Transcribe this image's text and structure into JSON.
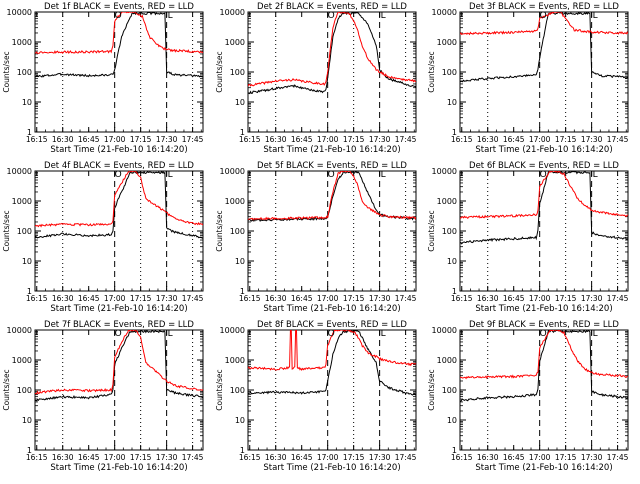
{
  "chart_data": [
    {
      "type": "line",
      "title": "Det 1f BLACK = Events, RED = LLD",
      "xlabel": "Start Time (21-Feb-10 16:14:20)",
      "ylabel": "Counts/sec",
      "yscale": "log",
      "ylim": [
        1,
        10000
      ],
      "x_ticks": [
        "16:15",
        "16:30",
        "16:45",
        "17:00",
        "17:15",
        "17:30",
        "17:45"
      ],
      "y_ticks": [
        "1",
        "10",
        "100",
        "1000",
        "10000"
      ],
      "markers": [
        "O",
        "L"
      ],
      "grid": false,
      "series": [
        {
          "name": "Events",
          "color": "#000000",
          "x": [
            "16:14",
            "16:30",
            "16:45",
            "16:58",
            "16:59",
            "17:00",
            "17:04",
            "17:10",
            "17:22",
            "17:26",
            "17:28",
            "17:29",
            "17:30",
            "17:35",
            "17:45",
            "17:51"
          ],
          "values": [
            70,
            85,
            75,
            80,
            90,
            120,
            1500,
            9000,
            9000,
            9000,
            9000,
            9000,
            100,
            80,
            75,
            70
          ]
        },
        {
          "name": "LLD",
          "color": "#ff0000",
          "x": [
            "16:14",
            "16:30",
            "16:45",
            "16:58",
            "16:59",
            "17:00",
            "17:04",
            "17:08",
            "17:12",
            "17:16",
            "17:20",
            "17:26",
            "17:30",
            "17:35",
            "17:45",
            "17:51"
          ],
          "values": [
            450,
            460,
            470,
            480,
            800,
            5000,
            10000,
            10000,
            10000,
            7000,
            1500,
            700,
            550,
            520,
            480,
            450
          ]
        }
      ]
    },
    {
      "type": "line",
      "title": "Det 2f BLACK = Events, RED = LLD",
      "xlabel": "Start Time (21-Feb-10 16:14:20)",
      "ylabel": "Counts/sec",
      "yscale": "log",
      "ylim": [
        1,
        10000
      ],
      "x_ticks": [
        "16:15",
        "16:30",
        "16:45",
        "17:00",
        "17:15",
        "17:30",
        "17:45"
      ],
      "y_ticks": [
        "1",
        "10",
        "100",
        "1000",
        "10000"
      ],
      "markers": [
        "O",
        "L"
      ],
      "grid": false,
      "series": [
        {
          "name": "Events",
          "color": "#000000",
          "x": [
            "16:14",
            "16:30",
            "16:40",
            "16:50",
            "16:58",
            "16:59",
            "17:00",
            "17:03",
            "17:06",
            "17:09",
            "17:10",
            "17:18",
            "17:23",
            "17:28",
            "17:30",
            "17:35",
            "17:45",
            "17:51"
          ],
          "values": [
            20,
            28,
            35,
            25,
            22,
            25,
            60,
            1500,
            6000,
            9000,
            9000,
            9000,
            4000,
            800,
            120,
            60,
            40,
            30
          ]
        },
        {
          "name": "LLD",
          "color": "#ff0000",
          "x": [
            "16:14",
            "16:30",
            "16:40",
            "16:50",
            "16:58",
            "16:59",
            "17:00",
            "17:03",
            "17:06",
            "17:09",
            "17:13",
            "17:17",
            "17:20",
            "17:23",
            "17:28",
            "17:30",
            "17:35",
            "17:45",
            "17:51"
          ],
          "values": [
            35,
            50,
            55,
            45,
            40,
            45,
            100,
            3000,
            10000,
            10000,
            8000,
            3000,
            700,
            300,
            120,
            100,
            70,
            55,
            50
          ]
        }
      ]
    },
    {
      "type": "line",
      "title": "Det 3f BLACK = Events, RED = LLD",
      "xlabel": "Start Time (21-Feb-10 16:14:20)",
      "ylabel": "Counts/sec",
      "yscale": "log",
      "ylim": [
        1,
        10000
      ],
      "x_ticks": [
        "16:15",
        "16:30",
        "16:45",
        "17:00",
        "17:15",
        "17:30",
        "17:45"
      ],
      "y_ticks": [
        "1",
        "10",
        "100",
        "1000",
        "10000"
      ],
      "markers": [
        "O",
        "L"
      ],
      "grid": false,
      "series": [
        {
          "name": "Events",
          "color": "#000000",
          "x": [
            "16:14",
            "16:30",
            "16:45",
            "16:58",
            "16:59",
            "17:00",
            "17:05",
            "17:24",
            "17:28",
            "17:29",
            "17:30",
            "17:35",
            "17:45",
            "17:51"
          ],
          "values": [
            50,
            60,
            70,
            80,
            120,
            300,
            9000,
            9000,
            9000,
            9000,
            100,
            75,
            70,
            65
          ]
        },
        {
          "name": "LLD",
          "color": "#ff0000",
          "x": [
            "16:14",
            "16:30",
            "16:45",
            "16:58",
            "16:59",
            "17:00",
            "17:08",
            "17:12",
            "17:16",
            "17:20",
            "17:28",
            "17:35",
            "17:45",
            "17:51"
          ],
          "values": [
            1900,
            2000,
            2100,
            2300,
            2800,
            6000,
            10000,
            10000,
            5000,
            2500,
            2200,
            2100,
            2000,
            2000
          ]
        }
      ]
    },
    {
      "type": "line",
      "title": "Det 4f BLACK = Events, RED = LLD",
      "xlabel": "Start Time (21-Feb-10 16:14:20)",
      "ylabel": "Counts/sec",
      "yscale": "log",
      "ylim": [
        1,
        10000
      ],
      "x_ticks": [
        "16:15",
        "16:30",
        "16:45",
        "17:00",
        "17:15",
        "17:30",
        "17:45"
      ],
      "y_ticks": [
        "1",
        "10",
        "100",
        "1000",
        "10000"
      ],
      "markers": [
        "O",
        "L"
      ],
      "grid": false,
      "series": [
        {
          "name": "Events",
          "color": "#000000",
          "x": [
            "16:14",
            "16:30",
            "16:45",
            "16:58",
            "16:59",
            "17:00",
            "17:04",
            "17:09",
            "17:25",
            "17:28",
            "17:29",
            "17:30",
            "17:35",
            "17:45",
            "17:51"
          ],
          "values": [
            60,
            80,
            70,
            75,
            100,
            600,
            2000,
            9000,
            9000,
            9000,
            9000,
            120,
            90,
            70,
            60
          ]
        },
        {
          "name": "LLD",
          "color": "#ff0000",
          "x": [
            "16:14",
            "16:30",
            "16:45",
            "16:58",
            "16:59",
            "17:00",
            "17:04",
            "17:08",
            "17:12",
            "17:15",
            "17:18",
            "17:24",
            "17:30",
            "17:35",
            "17:45",
            "17:51"
          ],
          "values": [
            150,
            165,
            160,
            170,
            220,
            1500,
            4000,
            10000,
            10000,
            6000,
            1200,
            700,
            400,
            250,
            180,
            170
          ]
        }
      ]
    },
    {
      "type": "line",
      "title": "Det 5f BLACK = Events, RED = LLD",
      "xlabel": "Start Time (21-Feb-10 16:14:20)",
      "ylabel": "Counts/sec",
      "yscale": "log",
      "ylim": [
        1,
        10000
      ],
      "x_ticks": [
        "16:15",
        "16:30",
        "16:45",
        "17:00",
        "17:15",
        "17:30",
        "17:45"
      ],
      "y_ticks": [
        "1",
        "10",
        "100",
        "1000",
        "10000"
      ],
      "markers": [
        "O",
        "L"
      ],
      "grid": false,
      "series": [
        {
          "name": "Events",
          "color": "#000000",
          "x": [
            "16:14",
            "16:30",
            "16:45",
            "16:58",
            "16:59",
            "17:00",
            "17:03",
            "17:06",
            "17:09",
            "17:18",
            "17:23",
            "17:28",
            "17:30",
            "17:35",
            "17:45",
            "17:51"
          ],
          "values": [
            230,
            240,
            250,
            260,
            270,
            280,
            1500,
            5000,
            9000,
            9000,
            2000,
            500,
            350,
            300,
            270,
            260
          ]
        },
        {
          "name": "LLD",
          "color": "#ff0000",
          "x": [
            "16:14",
            "16:30",
            "16:45",
            "16:58",
            "16:59",
            "17:00",
            "17:03",
            "17:06",
            "17:09",
            "17:13",
            "17:17",
            "17:20",
            "17:23",
            "17:28",
            "17:30",
            "17:35",
            "17:45",
            "17:51"
          ],
          "values": [
            250,
            260,
            270,
            280,
            290,
            300,
            2000,
            8000,
            10000,
            10000,
            4000,
            1000,
            600,
            400,
            350,
            300,
            280,
            270
          ]
        }
      ]
    },
    {
      "type": "line",
      "title": "Det 6f BLACK = Events, RED = LLD",
      "xlabel": "Start Time (21-Feb-10 16:14:20)",
      "ylabel": "Counts/sec",
      "yscale": "log",
      "ylim": [
        1,
        10000
      ],
      "x_ticks": [
        "16:15",
        "16:30",
        "16:45",
        "17:00",
        "17:15",
        "17:30",
        "17:45"
      ],
      "y_ticks": [
        "1",
        "10",
        "100",
        "1000",
        "10000"
      ],
      "markers": [
        "O",
        "L"
      ],
      "grid": false,
      "series": [
        {
          "name": "Events",
          "color": "#000000",
          "x": [
            "16:14",
            "16:30",
            "16:45",
            "16:58",
            "16:59",
            "17:00",
            "17:05",
            "17:26",
            "17:28",
            "17:29",
            "17:30",
            "17:35",
            "17:45",
            "17:51"
          ],
          "values": [
            40,
            50,
            55,
            60,
            100,
            800,
            9000,
            9000,
            9000,
            9000,
            90,
            70,
            60,
            55
          ]
        },
        {
          "name": "LLD",
          "color": "#ff0000",
          "x": [
            "16:14",
            "16:30",
            "16:45",
            "16:58",
            "16:59",
            "17:00",
            "17:06",
            "17:10",
            "17:14",
            "17:18",
            "17:22",
            "17:26",
            "17:30",
            "17:35",
            "17:45",
            "17:51"
          ],
          "values": [
            280,
            300,
            320,
            350,
            450,
            3000,
            10000,
            10000,
            8000,
            3000,
            1200,
            700,
            500,
            420,
            350,
            320
          ]
        }
      ]
    },
    {
      "type": "line",
      "title": "Det 7f BLACK = Events, RED = LLD",
      "xlabel": "Start Time (21-Feb-10 16:14:20)",
      "ylabel": "Counts/sec",
      "yscale": "log",
      "ylim": [
        1,
        10000
      ],
      "x_ticks": [
        "16:15",
        "16:30",
        "16:45",
        "17:00",
        "17:15",
        "17:30",
        "17:45"
      ],
      "y_ticks": [
        "1",
        "10",
        "100",
        "1000",
        "10000"
      ],
      "markers": [
        "O",
        "L"
      ],
      "grid": false,
      "series": [
        {
          "name": "Events",
          "color": "#000000",
          "x": [
            "16:14",
            "16:30",
            "16:45",
            "16:58",
            "16:59",
            "17:00",
            "17:04",
            "17:09",
            "17:25",
            "17:28",
            "17:29",
            "17:30",
            "17:35",
            "17:45",
            "17:51"
          ],
          "values": [
            45,
            60,
            55,
            70,
            100,
            700,
            2500,
            9000,
            9000,
            9000,
            9000,
            100,
            80,
            65,
            60
          ]
        },
        {
          "name": "LLD",
          "color": "#ff0000",
          "x": [
            "16:14",
            "16:30",
            "16:45",
            "16:58",
            "16:59",
            "17:00",
            "17:04",
            "17:08",
            "17:12",
            "17:15",
            "17:18",
            "17:24",
            "17:30",
            "17:35",
            "17:45",
            "17:51"
          ],
          "values": [
            80,
            100,
            95,
            100,
            150,
            1200,
            4000,
            10000,
            10000,
            6000,
            800,
            400,
            200,
            140,
            110,
            100
          ]
        }
      ]
    },
    {
      "type": "line",
      "title": "Det 8f BLACK = Events, RED = LLD",
      "xlabel": "Start Time (21-Feb-10 16:14:20)",
      "ylabel": "Counts/sec",
      "yscale": "log",
      "ylim": [
        1,
        10000
      ],
      "x_ticks": [
        "16:15",
        "16:30",
        "16:45",
        "17:00",
        "17:15",
        "17:30",
        "17:45"
      ],
      "y_ticks": [
        "1",
        "10",
        "100",
        "1000",
        "10000"
      ],
      "markers": [
        "O",
        "L"
      ],
      "grid": false,
      "series": [
        {
          "name": "Events",
          "color": "#000000",
          "x": [
            "16:14",
            "16:30",
            "16:45",
            "16:58",
            "16:59",
            "17:00",
            "17:03",
            "17:06",
            "17:09",
            "17:18",
            "17:23",
            "17:28",
            "17:30",
            "17:35",
            "17:45",
            "17:51"
          ],
          "values": [
            80,
            85,
            80,
            90,
            100,
            200,
            1500,
            5000,
            9000,
            9000,
            2500,
            800,
            200,
            120,
            80,
            70
          ]
        },
        {
          "name": "LLD",
          "color": "#ff0000",
          "x": [
            "16:14",
            "16:30",
            "16:38",
            "16:38",
            "16:39",
            "16:39",
            "16:41",
            "16:41",
            "16:42",
            "16:42",
            "16:45",
            "16:58",
            "16:59",
            "17:00",
            "17:04",
            "17:08",
            "17:12",
            "17:16",
            "17:20",
            "17:24",
            "17:28",
            "17:30",
            "17:35",
            "17:45",
            "17:51"
          ],
          "values": [
            550,
            500,
            550,
            10000,
            10000,
            500,
            550,
            10000,
            10000,
            550,
            500,
            550,
            700,
            3000,
            10000,
            10000,
            10000,
            8000,
            3000,
            1600,
            1300,
            1100,
            900,
            750,
            700
          ]
        }
      ]
    },
    {
      "type": "line",
      "title": "Det 9f BLACK = Events, RED = LLD",
      "xlabel": "Start Time (21-Feb-10 16:14:20)",
      "ylabel": "Counts/sec",
      "yscale": "log",
      "ylim": [
        1,
        10000
      ],
      "x_ticks": [
        "16:15",
        "16:30",
        "16:45",
        "17:00",
        "17:15",
        "17:30",
        "17:45"
      ],
      "y_ticks": [
        "1",
        "10",
        "100",
        "1000",
        "10000"
      ],
      "markers": [
        "O",
        "L"
      ],
      "grid": false,
      "series": [
        {
          "name": "Events",
          "color": "#000000",
          "x": [
            "16:14",
            "16:30",
            "16:45",
            "16:58",
            "16:59",
            "17:00",
            "17:05",
            "17:26",
            "17:28",
            "17:29",
            "17:30",
            "17:35",
            "17:45",
            "17:51"
          ],
          "values": [
            45,
            55,
            60,
            70,
            110,
            900,
            9000,
            9000,
            9000,
            9000,
            90,
            70,
            60,
            55
          ]
        },
        {
          "name": "LLD",
          "color": "#ff0000",
          "x": [
            "16:14",
            "16:30",
            "16:45",
            "16:58",
            "16:59",
            "17:00",
            "17:06",
            "17:10",
            "17:14",
            "17:18",
            "17:22",
            "17:26",
            "17:30",
            "17:35",
            "17:45",
            "17:51"
          ],
          "values": [
            260,
            270,
            280,
            300,
            400,
            2500,
            10000,
            10000,
            8000,
            2500,
            900,
            500,
            380,
            330,
            300,
            280
          ]
        }
      ]
    }
  ]
}
